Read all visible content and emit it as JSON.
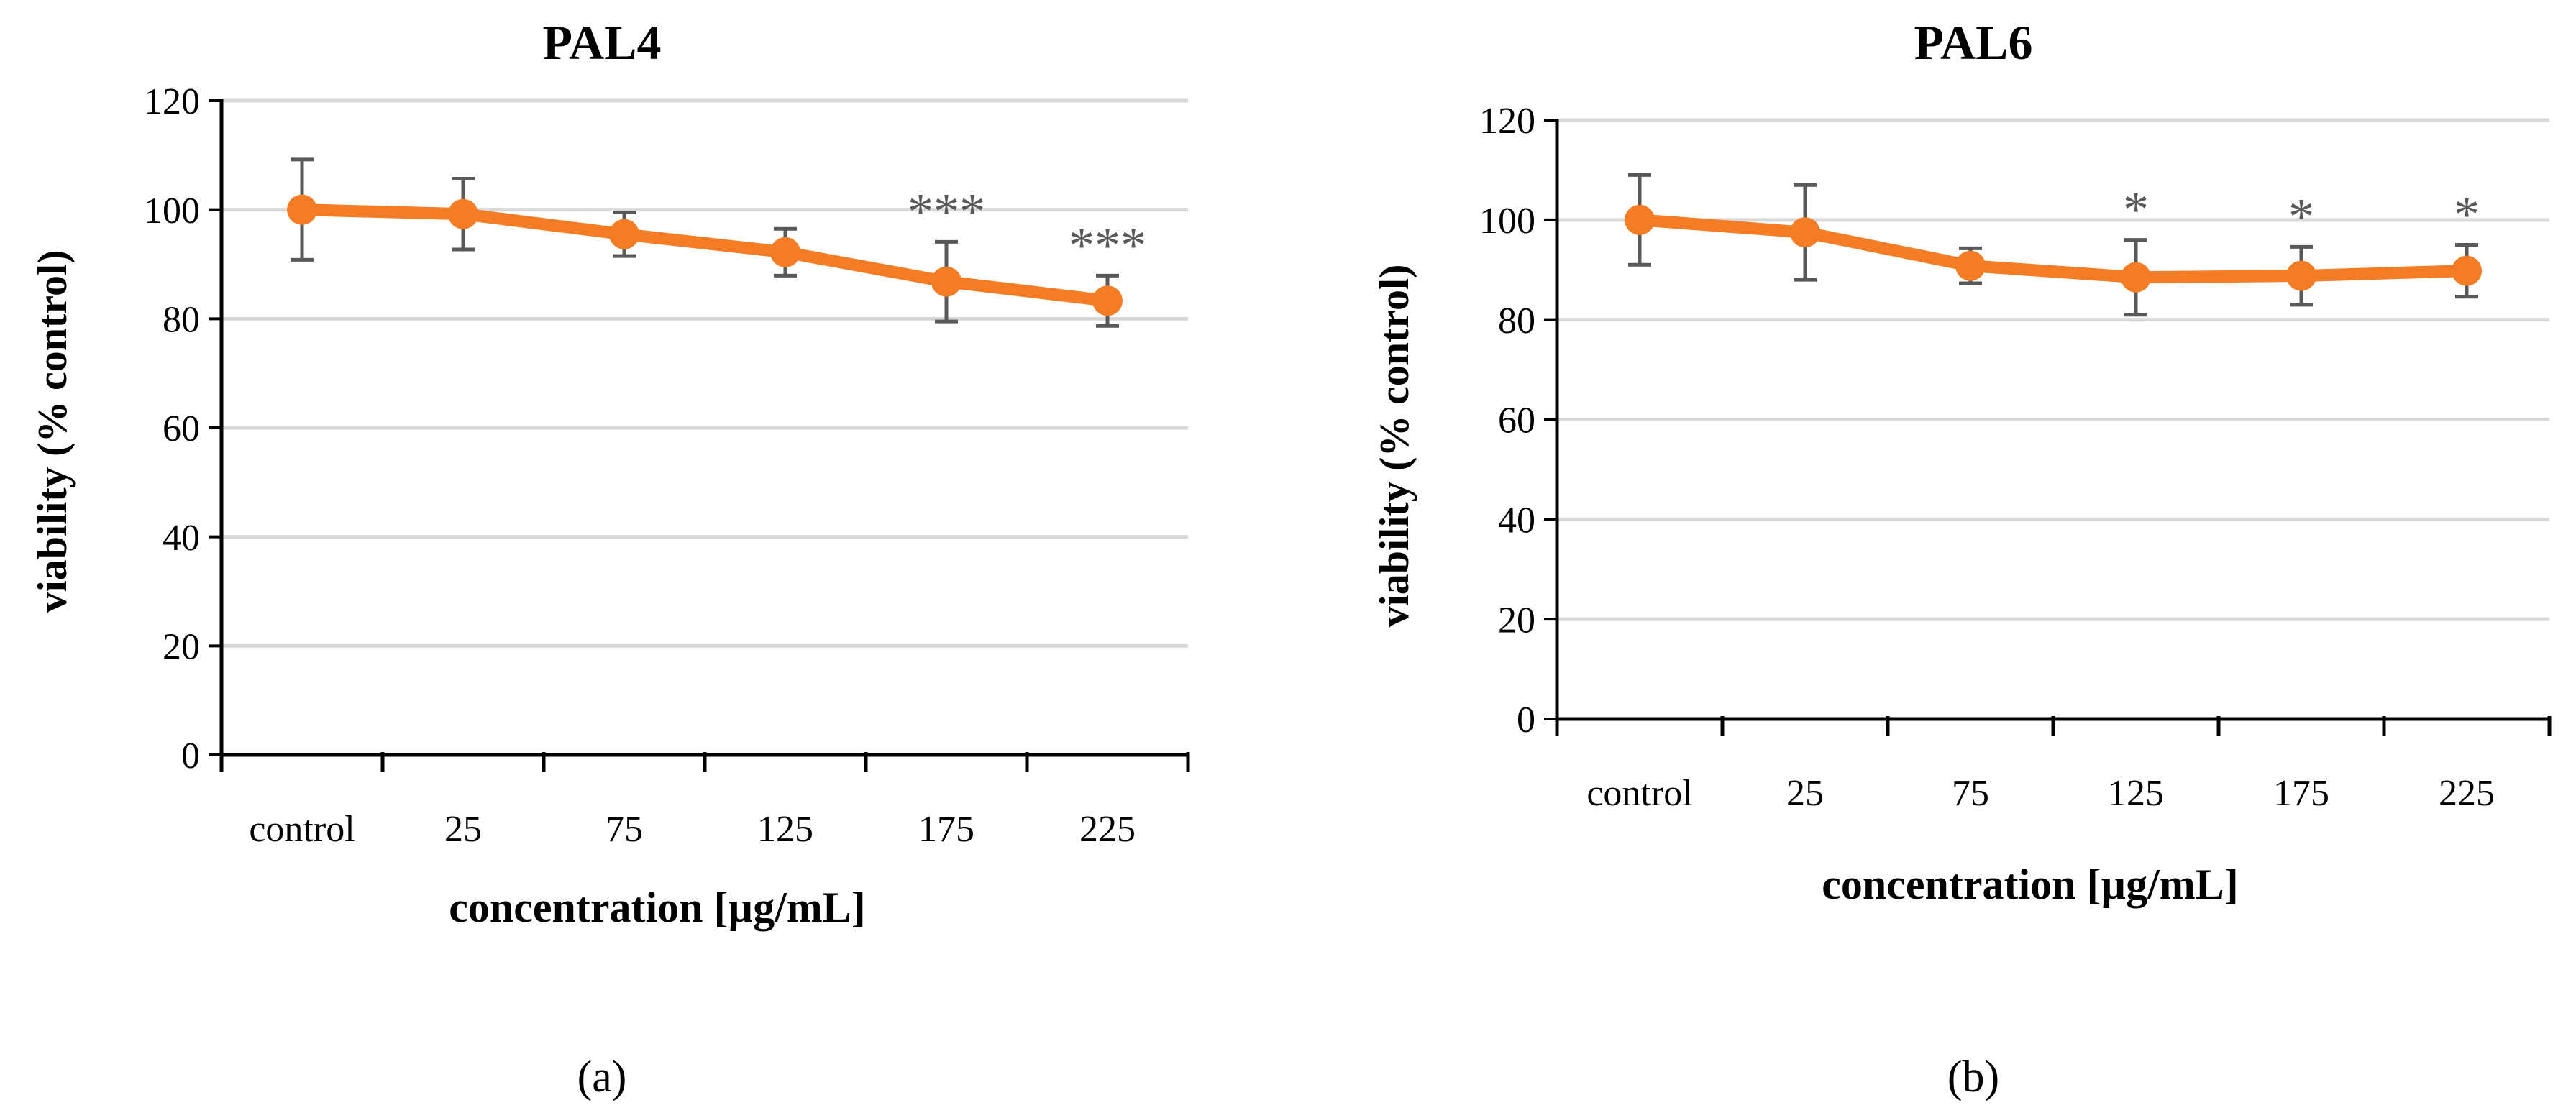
{
  "chart_data": [
    {
      "type": "line",
      "title": "PAL4",
      "panel_label": "(a)",
      "xlabel": "concentration [µg/mL]",
      "ylabel": "viability (% control)",
      "ylim": [
        0,
        120
      ],
      "yticks": [
        0,
        20,
        40,
        60,
        80,
        100,
        120
      ],
      "ytick_labels": [
        "0",
        "20",
        "40",
        "60",
        "80",
        "100",
        "120"
      ],
      "grid": true,
      "categories": [
        "control",
        "25",
        "75",
        "125",
        "175",
        "225"
      ],
      "series": [
        {
          "name": "PAL4",
          "color": "#F47C24",
          "values": [
            100,
            99.2,
            95.5,
            92.2,
            86.8,
            83.3
          ],
          "error": [
            9.2,
            6.5,
            4.0,
            4.3,
            7.3,
            4.6
          ]
        }
      ],
      "annotations": [
        "",
        "",
        "",
        "",
        "***",
        "***"
      ]
    },
    {
      "type": "line",
      "title": "PAL6",
      "panel_label": "(b)",
      "xlabel": "concentration [µg/mL]",
      "ylabel": "viability (% control)",
      "ylim": [
        0,
        120
      ],
      "yticks": [
        0,
        20,
        40,
        60,
        80,
        100,
        120
      ],
      "ytick_labels": [
        "0",
        "20",
        "40",
        "60",
        "80",
        "100",
        "120"
      ],
      "grid": true,
      "categories": [
        "control",
        "25",
        "75",
        "125",
        "175",
        "225"
      ],
      "series": [
        {
          "name": "PAL6",
          "color": "#F47C24",
          "values": [
            100,
            97.5,
            90.8,
            88.5,
            88.8,
            89.8
          ],
          "error": [
            9.0,
            9.5,
            3.5,
            7.5,
            5.8,
            5.2
          ]
        }
      ],
      "annotations": [
        "",
        "",
        "",
        "*",
        "*",
        "*"
      ]
    }
  ]
}
